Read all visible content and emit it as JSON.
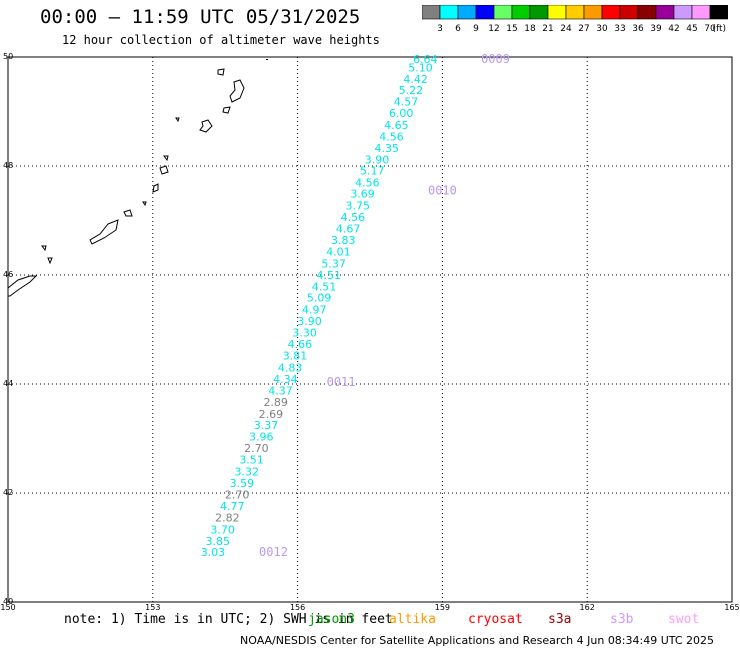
{
  "header": {
    "title": "00:00 – 11:59 UTC 05/31/2025",
    "subtitle": "12 hour collection of altimeter wave heights"
  },
  "colorbar": {
    "colors": [
      "#808080",
      "#00ffff",
      "#00aaff",
      "#0000ff",
      "#66ff66",
      "#00cc00",
      "#009900",
      "#ffff00",
      "#ffcc00",
      "#ff9900",
      "#ff0000",
      "#cc0000",
      "#880000",
      "#990099",
      "#cc99ff",
      "#ff99ff",
      "#000000"
    ],
    "labels": [
      "3",
      "6",
      "9",
      "12",
      "15",
      "18",
      "21",
      "24",
      "27",
      "30",
      "33",
      "36",
      "39",
      "42",
      "45",
      "70"
    ],
    "unit": "(ft)"
  },
  "footer": {
    "note": "note: 1) Time is in UTC; 2) SWH is in feet",
    "credit": "NOAA/NESDIS Center for Satellite Applications and Research    4 Jun 08:34:49 UTC 2025"
  },
  "satellites": [
    {
      "name": "jason3",
      "color": "#009900"
    },
    {
      "name": "altika",
      "color": "#ff9900"
    },
    {
      "name": "cryosat",
      "color": "#ff0000"
    },
    {
      "name": "s3a",
      "color": "#990000"
    },
    {
      "name": "s3b",
      "color": "#cc99ff"
    },
    {
      "name": "swot",
      "color": "#ff99ff"
    }
  ],
  "chart_data": {
    "type": "scatter",
    "title": "00:00 – 11:59 UTC 05/31/2025",
    "xlim": [
      150,
      165
    ],
    "ylim": [
      40,
      50
    ],
    "xticks": [
      "150",
      "153",
      "156",
      "159",
      "162",
      "165"
    ],
    "yticks": [
      "40",
      "42",
      "44",
      "46",
      "48",
      "50"
    ],
    "grid": true,
    "series": [
      {
        "name": "s3b",
        "color": "#00e5e5",
        "lowColor": "#808080",
        "points": [
          {
            "lon": 158.9,
            "lat": 49.89,
            "v": "6.64"
          },
          {
            "lon": 158.8,
            "lat": 49.73,
            "v": "5.10"
          },
          {
            "lon": 158.7,
            "lat": 49.52,
            "v": "4.42"
          },
          {
            "lon": 158.6,
            "lat": 49.32,
            "v": "5.22"
          },
          {
            "lon": 158.5,
            "lat": 49.11,
            "v": "4.57"
          },
          {
            "lon": 158.4,
            "lat": 48.9,
            "v": "6.00"
          },
          {
            "lon": 158.3,
            "lat": 48.68,
            "v": "4.65"
          },
          {
            "lon": 158.2,
            "lat": 48.47,
            "v": "4.56"
          },
          {
            "lon": 158.1,
            "lat": 48.26,
            "v": "4.35"
          },
          {
            "lon": 157.9,
            "lat": 48.05,
            "v": "3.90"
          },
          {
            "lon": 157.8,
            "lat": 47.84,
            "v": "5.17"
          },
          {
            "lon": 157.7,
            "lat": 47.62,
            "v": "4.56"
          },
          {
            "lon": 157.6,
            "lat": 47.42,
            "v": "3.69"
          },
          {
            "lon": 157.5,
            "lat": 47.2,
            "v": "3.75"
          },
          {
            "lon": 157.4,
            "lat": 46.99,
            "v": "4.56"
          },
          {
            "lon": 157.3,
            "lat": 46.78,
            "v": "4.67"
          },
          {
            "lon": 157.2,
            "lat": 46.57,
            "v": "3.83"
          },
          {
            "lon": 157.1,
            "lat": 46.36,
            "v": "4.01"
          },
          {
            "lon": 157.0,
            "lat": 46.14,
            "v": "5.37"
          },
          {
            "lon": 156.9,
            "lat": 45.93,
            "v": "4.51"
          },
          {
            "lon": 156.8,
            "lat": 45.72,
            "v": "4.51"
          },
          {
            "lon": 156.7,
            "lat": 45.51,
            "v": "5.09"
          },
          {
            "lon": 156.6,
            "lat": 45.29,
            "v": "4.97"
          },
          {
            "lon": 156.5,
            "lat": 45.08,
            "v": "3.90"
          },
          {
            "lon": 156.4,
            "lat": 44.87,
            "v": "3.30"
          },
          {
            "lon": 156.3,
            "lat": 44.66,
            "v": "4.66"
          },
          {
            "lon": 156.2,
            "lat": 44.45,
            "v": "3.81"
          },
          {
            "lon": 156.1,
            "lat": 44.23,
            "v": "4.83"
          },
          {
            "lon": 156.0,
            "lat": 44.02,
            "v": "4.34"
          },
          {
            "lon": 155.9,
            "lat": 43.81,
            "v": "4.37"
          },
          {
            "lon": 155.8,
            "lat": 43.6,
            "v": "2.89"
          },
          {
            "lon": 155.7,
            "lat": 43.38,
            "v": "2.69"
          },
          {
            "lon": 155.6,
            "lat": 43.17,
            "v": "3.37"
          },
          {
            "lon": 155.5,
            "lat": 42.96,
            "v": "3.96"
          },
          {
            "lon": 155.4,
            "lat": 42.75,
            "v": "2.70"
          },
          {
            "lon": 155.3,
            "lat": 42.54,
            "v": "3.51"
          },
          {
            "lon": 155.2,
            "lat": 42.32,
            "v": "3.32"
          },
          {
            "lon": 155.1,
            "lat": 42.11,
            "v": "3.59"
          },
          {
            "lon": 155.0,
            "lat": 41.9,
            "v": "2.70"
          },
          {
            "lon": 154.9,
            "lat": 41.69,
            "v": "4.77"
          },
          {
            "lon": 154.8,
            "lat": 41.48,
            "v": "2.82"
          },
          {
            "lon": 154.7,
            "lat": 41.26,
            "v": "3.70"
          },
          {
            "lon": 154.6,
            "lat": 41.05,
            "v": "3.85"
          },
          {
            "lon": 154.5,
            "lat": 40.84,
            "v": "3.03"
          }
        ]
      }
    ],
    "annotations": [
      {
        "text": "0009",
        "lon": 160.4,
        "lat": 49.89
      },
      {
        "text": "0010",
        "lon": 159.3,
        "lat": 47.48
      },
      {
        "text": "0011",
        "lon": 157.2,
        "lat": 43.96
      },
      {
        "text": "0012",
        "lon": 155.8,
        "lat": 40.84
      }
    ]
  }
}
